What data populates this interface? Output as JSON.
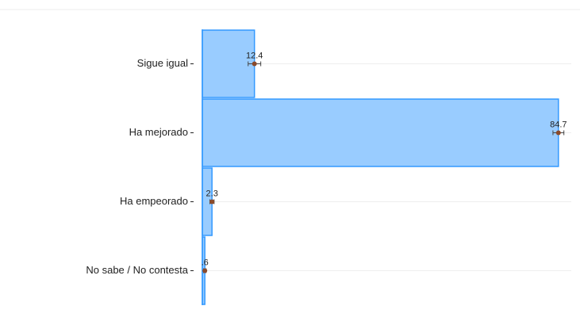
{
  "chart_data": {
    "type": "bar",
    "orientation": "horizontal",
    "categories": [
      "Sigue igual",
      "Ha mejorado",
      "Ha empeorado",
      "No sabe / No contesta"
    ],
    "values": [
      12.4,
      84.7,
      2.3,
      0.6
    ],
    "value_labels": [
      "12.4",
      "84.7",
      "2.3",
      ".6"
    ],
    "errors": [
      1.5,
      1.3,
      0.5,
      0.3
    ],
    "color": "#99ccff",
    "edge_color": "#3399ff",
    "point_color": "#8b4a2b",
    "xlim": [
      0,
      87
    ],
    "grid": true
  }
}
